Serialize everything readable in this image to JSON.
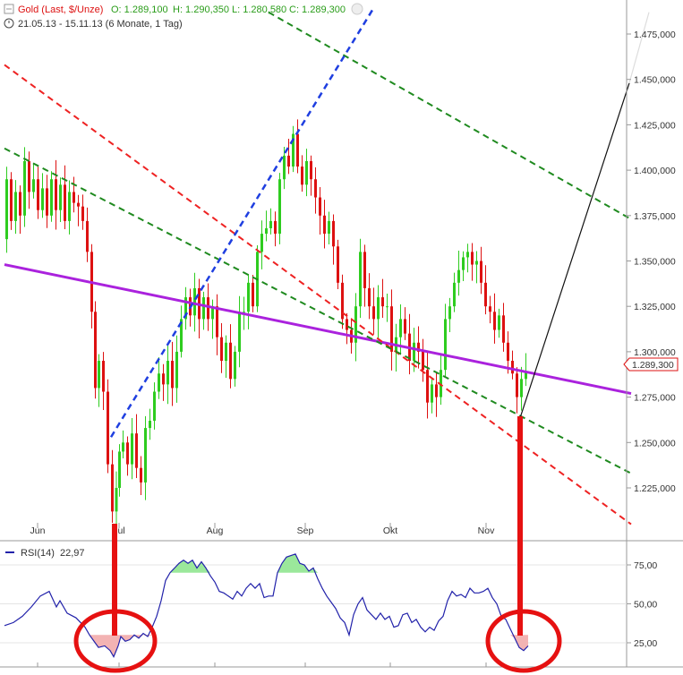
{
  "header": {
    "symbol": "Gold (Last, $/Unze)",
    "open": "O: 1.289,100",
    "high": "H: 1.290,350",
    "low": "L: 1.280,580",
    "close": "C: 1.289,300",
    "range": "21.05.13 - 15.11.13 (6 Monate, 1 Tag)"
  },
  "price_box": "1.289,300",
  "rsi": {
    "label": "RSI(14)",
    "value": "22,97"
  },
  "colors": {
    "up": "#2ecc1f",
    "down": "#dd1111",
    "purple": "#aa22dd",
    "green_dash": "#1f8a1f",
    "red_dash": "#ee2222",
    "blue_dash": "#1f3fe0",
    "rsi_line": "#2222aa",
    "circle": "#e61111"
  },
  "chart_data": {
    "type": "candlestick",
    "title": "Gold (Last, $/Unze)",
    "period": "21.05.13 - 15.11.13",
    "price_axis": {
      "ticks": [
        1225,
        1250,
        1275,
        1300,
        1325,
        1350,
        1375,
        1400,
        1425,
        1450,
        1475
      ],
      "tick_labels": [
        "1.225,000",
        "1.250,000",
        "1.275,000",
        "1.300,000",
        "1.325,000",
        "1.350,000",
        "1.375,000",
        "1.400,000",
        "1.425,000",
        "1.450,000",
        "1.475,000"
      ],
      "range": [
        1205,
        1487
      ]
    },
    "x_axis_labels": [
      "Jun",
      "Jul",
      "Aug",
      "Sep",
      "Okt",
      "Nov"
    ],
    "close_path": [
      [
        0,
        1362
      ],
      [
        5,
        1395
      ],
      [
        10,
        1372
      ],
      [
        15,
        1388
      ],
      [
        20,
        1375
      ],
      [
        25,
        1405
      ],
      [
        30,
        1388
      ],
      [
        35,
        1395
      ],
      [
        40,
        1378
      ],
      [
        45,
        1390
      ],
      [
        50,
        1375
      ],
      [
        55,
        1395
      ],
      [
        60,
        1378
      ],
      [
        65,
        1392
      ],
      [
        70,
        1372
      ],
      [
        75,
        1388
      ],
      [
        80,
        1382
      ],
      [
        85,
        1380
      ],
      [
        90,
        1372
      ],
      [
        95,
        1355
      ],
      [
        100,
        1322
      ],
      [
        103,
        1280
      ],
      [
        108,
        1295
      ],
      [
        113,
        1278
      ],
      [
        118,
        1238
      ],
      [
        123,
        1212
      ],
      [
        127,
        1225
      ],
      [
        130,
        1245
      ],
      [
        135,
        1250
      ],
      [
        140,
        1238
      ],
      [
        145,
        1255
      ],
      [
        150,
        1236
      ],
      [
        155,
        1228
      ],
      [
        160,
        1258
      ],
      [
        165,
        1262
      ],
      [
        170,
        1278
      ],
      [
        175,
        1288
      ],
      [
        180,
        1282
      ],
      [
        185,
        1295
      ],
      [
        190,
        1280
      ],
      [
        195,
        1300
      ],
      [
        200,
        1318
      ],
      [
        205,
        1330
      ],
      [
        210,
        1320
      ],
      [
        215,
        1335
      ],
      [
        220,
        1318
      ],
      [
        225,
        1330
      ],
      [
        230,
        1318
      ],
      [
        235,
        1325
      ],
      [
        240,
        1308
      ],
      [
        245,
        1295
      ],
      [
        250,
        1305
      ],
      [
        255,
        1285
      ],
      [
        260,
        1300
      ],
      [
        265,
        1322
      ],
      [
        270,
        1322
      ],
      [
        275,
        1338
      ],
      [
        280,
        1325
      ],
      [
        285,
        1355
      ],
      [
        290,
        1365
      ],
      [
        295,
        1368
      ],
      [
        300,
        1372
      ],
      [
        305,
        1365
      ],
      [
        310,
        1395
      ],
      [
        315,
        1408
      ],
      [
        320,
        1402
      ],
      [
        325,
        1420
      ],
      [
        330,
        1402
      ],
      [
        335,
        1392
      ],
      [
        340,
        1405
      ],
      [
        345,
        1395
      ],
      [
        350,
        1385
      ],
      [
        355,
        1375
      ],
      [
        360,
        1365
      ],
      [
        365,
        1372
      ],
      [
        370,
        1358
      ],
      [
        375,
        1338
      ],
      [
        380,
        1318
      ],
      [
        385,
        1312
      ],
      [
        390,
        1305
      ],
      [
        395,
        1325
      ],
      [
        400,
        1355
      ],
      [
        405,
        1335
      ],
      [
        410,
        1325
      ],
      [
        415,
        1318
      ],
      [
        420,
        1330
      ],
      [
        425,
        1325
      ],
      [
        430,
        1325
      ],
      [
        435,
        1300
      ],
      [
        440,
        1308
      ],
      [
        445,
        1318
      ],
      [
        450,
        1310
      ],
      [
        455,
        1295
      ],
      [
        460,
        1305
      ],
      [
        465,
        1300
      ],
      [
        470,
        1290
      ],
      [
        475,
        1272
      ],
      [
        480,
        1282
      ],
      [
        485,
        1275
      ],
      [
        490,
        1290
      ],
      [
        495,
        1318
      ],
      [
        500,
        1325
      ],
      [
        505,
        1338
      ],
      [
        510,
        1345
      ],
      [
        515,
        1352
      ],
      [
        520,
        1355
      ],
      [
        525,
        1348
      ],
      [
        530,
        1350
      ],
      [
        535,
        1338
      ],
      [
        540,
        1325
      ],
      [
        545,
        1322
      ],
      [
        550,
        1312
      ],
      [
        555,
        1320
      ],
      [
        560,
        1305
      ],
      [
        565,
        1295
      ],
      [
        570,
        1288
      ],
      [
        575,
        1275
      ],
      [
        580,
        1285
      ],
      [
        585,
        1289
      ]
    ],
    "rsi_axis": {
      "ticks": [
        25,
        50,
        75
      ],
      "tick_labels": [
        "25,00",
        "50,00",
        "75,00"
      ],
      "range": [
        15,
        86
      ]
    },
    "rsi_series": [
      [
        0,
        36
      ],
      [
        10,
        38
      ],
      [
        20,
        42
      ],
      [
        30,
        48
      ],
      [
        40,
        55
      ],
      [
        50,
        58
      ],
      [
        58,
        48
      ],
      [
        62,
        52
      ],
      [
        70,
        44
      ],
      [
        80,
        41
      ],
      [
        90,
        35
      ],
      [
        95,
        30
      ],
      [
        100,
        26
      ],
      [
        105,
        22
      ],
      [
        112,
        23
      ],
      [
        118,
        20
      ],
      [
        122,
        16
      ],
      [
        127,
        23
      ],
      [
        130,
        29
      ],
      [
        135,
        26
      ],
      [
        140,
        27
      ],
      [
        145,
        30
      ],
      [
        150,
        28
      ],
      [
        155,
        31
      ],
      [
        160,
        29
      ],
      [
        165,
        35
      ],
      [
        170,
        42
      ],
      [
        175,
        52
      ],
      [
        180,
        65
      ],
      [
        185,
        70
      ],
      [
        190,
        73
      ],
      [
        195,
        76
      ],
      [
        200,
        78
      ],
      [
        205,
        76
      ],
      [
        210,
        78
      ],
      [
        215,
        73
      ],
      [
        220,
        77
      ],
      [
        225,
        73
      ],
      [
        230,
        68
      ],
      [
        235,
        64
      ],
      [
        240,
        58
      ],
      [
        245,
        57
      ],
      [
        250,
        55
      ],
      [
        255,
        53
      ],
      [
        260,
        58
      ],
      [
        265,
        55
      ],
      [
        270,
        60
      ],
      [
        275,
        63
      ],
      [
        280,
        60
      ],
      [
        285,
        63
      ],
      [
        290,
        54
      ],
      [
        295,
        55
      ],
      [
        300,
        55
      ],
      [
        305,
        70
      ],
      [
        310,
        76
      ],
      [
        315,
        80
      ],
      [
        320,
        81
      ],
      [
        325,
        82
      ],
      [
        330,
        76
      ],
      [
        335,
        75
      ],
      [
        340,
        71
      ],
      [
        345,
        73
      ],
      [
        350,
        66
      ],
      [
        355,
        60
      ],
      [
        360,
        55
      ],
      [
        365,
        51
      ],
      [
        370,
        47
      ],
      [
        375,
        41
      ],
      [
        380,
        38
      ],
      [
        385,
        30
      ],
      [
        390,
        43
      ],
      [
        395,
        50
      ],
      [
        400,
        54
      ],
      [
        405,
        46
      ],
      [
        410,
        43
      ],
      [
        415,
        40
      ],
      [
        420,
        44
      ],
      [
        425,
        40
      ],
      [
        430,
        42
      ],
      [
        435,
        35
      ],
      [
        440,
        36
      ],
      [
        445,
        43
      ],
      [
        450,
        44
      ],
      [
        455,
        38
      ],
      [
        460,
        40
      ],
      [
        465,
        35
      ],
      [
        470,
        32
      ],
      [
        475,
        35
      ],
      [
        480,
        33
      ],
      [
        485,
        39
      ],
      [
        490,
        42
      ],
      [
        495,
        52
      ],
      [
        500,
        58
      ],
      [
        505,
        55
      ],
      [
        510,
        56
      ],
      [
        515,
        54
      ],
      [
        520,
        60
      ],
      [
        525,
        57
      ],
      [
        530,
        57
      ],
      [
        535,
        58
      ],
      [
        540,
        60
      ],
      [
        545,
        54
      ],
      [
        550,
        50
      ],
      [
        555,
        42
      ],
      [
        560,
        40
      ],
      [
        565,
        34
      ],
      [
        570,
        28
      ],
      [
        575,
        22
      ],
      [
        580,
        20
      ],
      [
        585,
        23
      ]
    ],
    "annotations": {
      "purple_line": [
        [
          0,
          1348
        ],
        [
          700,
          1277
        ]
      ],
      "blue_dash": [
        [
          119,
          1253
        ],
        [
          412,
          1489
        ]
      ],
      "red_dash": [
        [
          0,
          1458
        ],
        [
          700,
          1205
        ]
      ],
      "green_dash_mid": [
        [
          0,
          1412
        ],
        [
          700,
          1233
        ]
      ],
      "green_dash_top": [
        [
          295,
          1487
        ],
        [
          700,
          1373
        ]
      ],
      "black_line": [
        [
          575,
          1262
        ],
        [
          698,
          1448
        ]
      ],
      "black_line_ext": [
        [
          698,
          1448
        ],
        [
          720,
          1487
        ]
      ]
    },
    "grid": false,
    "legend": "top-left"
  }
}
